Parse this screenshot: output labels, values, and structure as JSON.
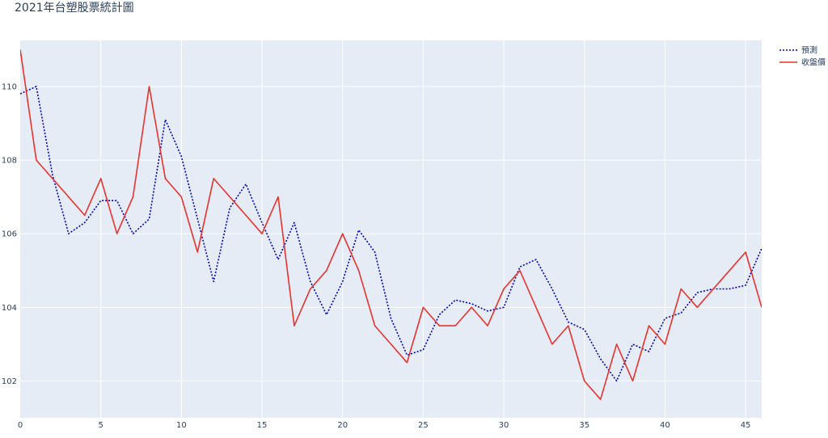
{
  "chart_data": {
    "type": "line",
    "title": "2021年台塑股票統計圖",
    "xlabel": "",
    "ylabel": "",
    "xlim": [
      0,
      46
    ],
    "ylim": [
      101,
      111.25
    ],
    "xticks": [
      0,
      5,
      10,
      15,
      20,
      25,
      30,
      35,
      40,
      45
    ],
    "yticks": [
      102,
      104,
      106,
      108,
      110
    ],
    "grid": true,
    "legend_position": "top-right",
    "x": [
      0,
      1,
      2,
      3,
      4,
      5,
      6,
      7,
      8,
      9,
      10,
      11,
      12,
      13,
      14,
      15,
      16,
      17,
      18,
      19,
      20,
      21,
      22,
      23,
      24,
      25,
      26,
      27,
      28,
      29,
      30,
      31,
      32,
      33,
      34,
      35,
      36,
      37,
      38,
      39,
      40,
      41,
      42,
      43,
      44,
      45,
      46
    ],
    "series": [
      {
        "name": "預測",
        "color": "#0000cc",
        "style": "dotted",
        "values": [
          109.8,
          110.0,
          107.6,
          106.0,
          106.3,
          106.9,
          106.9,
          106.0,
          106.4,
          109.1,
          108.1,
          106.4,
          104.7,
          106.7,
          107.35,
          106.3,
          105.3,
          106.3,
          104.7,
          103.8,
          104.7,
          106.1,
          105.5,
          103.7,
          102.7,
          102.85,
          103.8,
          104.2,
          104.1,
          103.9,
          104.0,
          105.1,
          105.3,
          104.5,
          103.6,
          103.4,
          102.6,
          102.0,
          103.0,
          102.8,
          103.7,
          103.85,
          104.4,
          104.5,
          104.5,
          104.6,
          105.6
        ]
      },
      {
        "name": "收盤價",
        "color": "#e8322c",
        "style": "solid",
        "values": [
          111.0,
          108.0,
          107.5,
          107.0,
          106.5,
          107.5,
          106.0,
          107.0,
          110.0,
          107.5,
          107.0,
          105.5,
          107.5,
          107.0,
          106.5,
          106.0,
          107.0,
          103.5,
          104.5,
          105.0,
          106.0,
          105.0,
          103.5,
          103.0,
          102.5,
          104.0,
          103.5,
          103.5,
          104.0,
          103.5,
          104.5,
          105.0,
          104.0,
          103.0,
          103.5,
          102.0,
          101.5,
          103.0,
          102.0,
          103.5,
          103.0,
          104.5,
          104.0,
          104.5,
          105.0,
          105.5,
          104.0
        ]
      }
    ]
  }
}
